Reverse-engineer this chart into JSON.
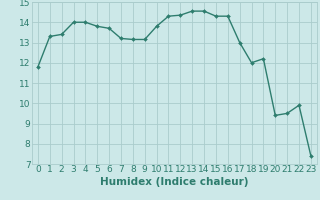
{
  "title": "",
  "xlabel": "Humidex (Indice chaleur)",
  "ylabel": "",
  "x": [
    0,
    1,
    2,
    3,
    4,
    5,
    6,
    7,
    8,
    9,
    10,
    11,
    12,
    13,
    14,
    15,
    16,
    17,
    18,
    19,
    20,
    21,
    22,
    23
  ],
  "y": [
    11.8,
    13.3,
    13.4,
    14.0,
    14.0,
    13.8,
    13.7,
    13.2,
    13.15,
    13.15,
    13.8,
    14.3,
    14.35,
    14.55,
    14.55,
    14.3,
    14.3,
    13.0,
    12.0,
    12.2,
    9.4,
    9.5,
    9.9,
    7.4
  ],
  "line_color": "#2e7d6e",
  "marker": "D",
  "marker_size": 2.0,
  "line_width": 1.0,
  "bg_color": "#cce8e8",
  "grid_color": "#aacccc",
  "ylim": [
    7,
    15
  ],
  "xlim": [
    -0.5,
    23.5
  ],
  "yticks": [
    7,
    8,
    9,
    10,
    11,
    12,
    13,
    14,
    15
  ],
  "xticks": [
    0,
    1,
    2,
    3,
    4,
    5,
    6,
    7,
    8,
    9,
    10,
    11,
    12,
    13,
    14,
    15,
    16,
    17,
    18,
    19,
    20,
    21,
    22,
    23
  ],
  "tick_fontsize": 6.5,
  "label_fontsize": 7.5
}
